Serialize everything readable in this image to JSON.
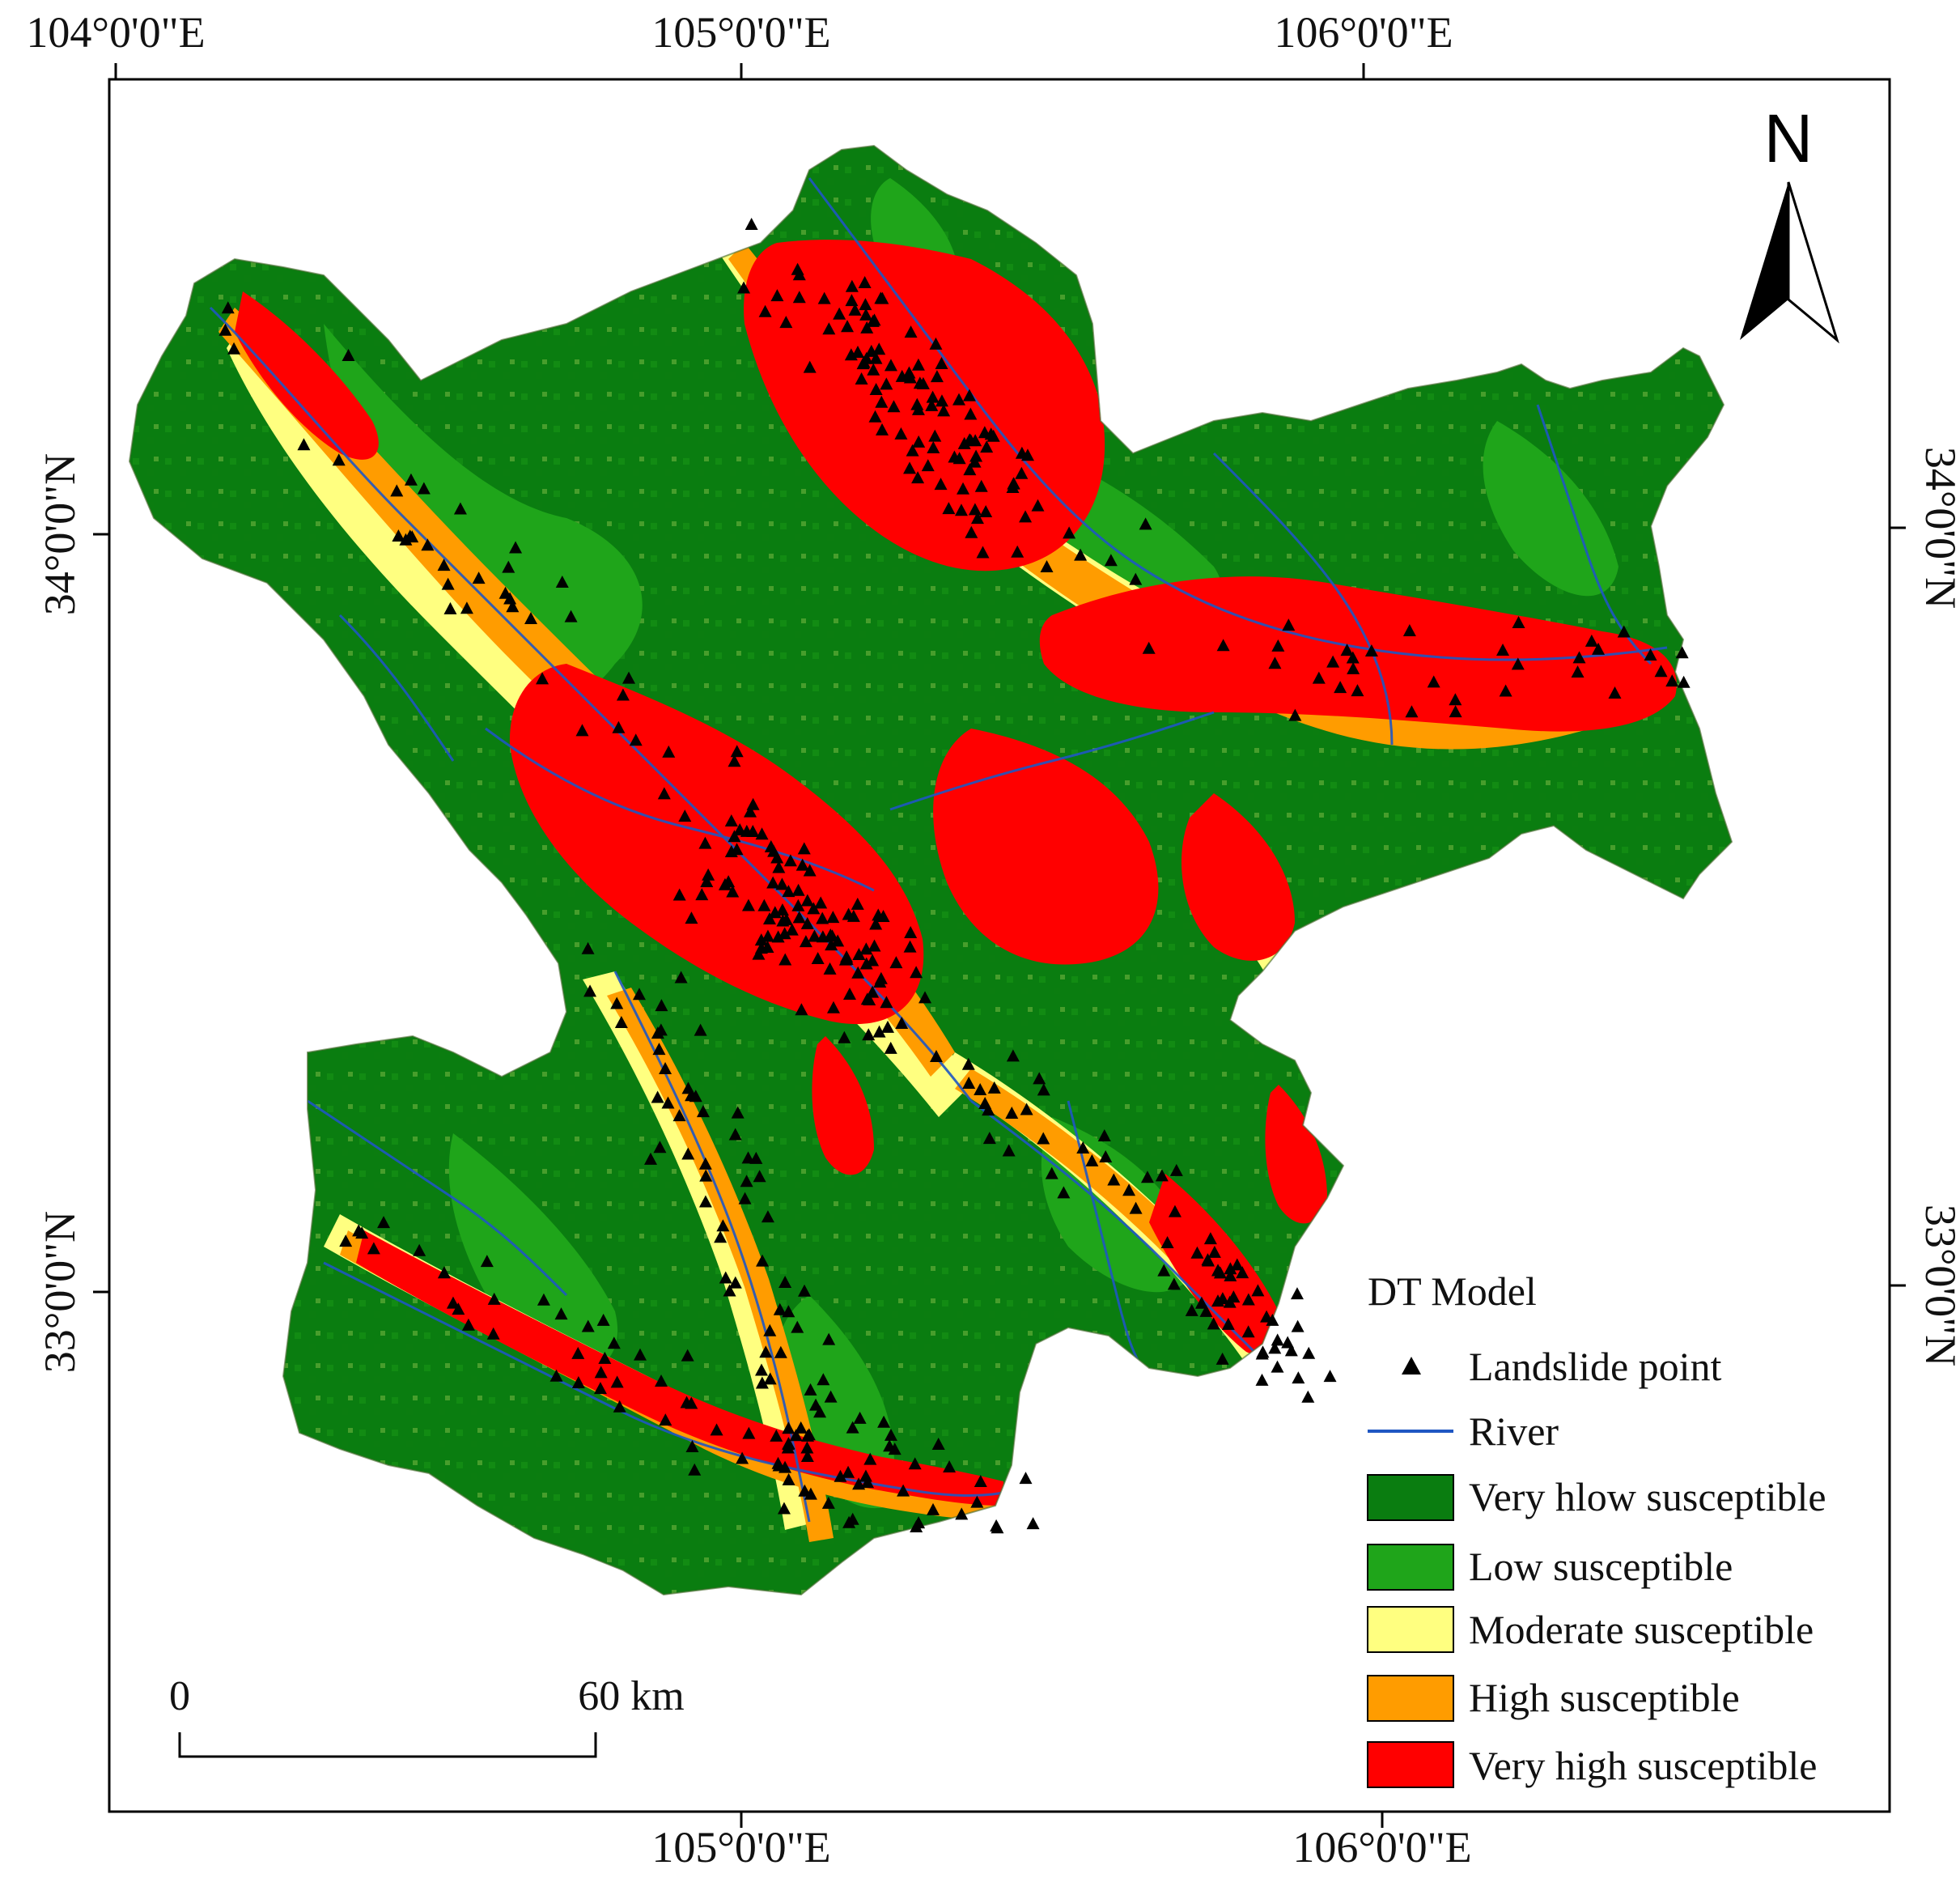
{
  "map": {
    "top_lon_labels": [
      "104°0'0\"E",
      "105°0'0\"E",
      "106°0'0\"E"
    ],
    "bottom_lon_labels": [
      "105°0'0\"E",
      "106°0'0\"E"
    ],
    "left_lat_labels": [
      "34°0'0\"N",
      "33°0'0\"N"
    ],
    "right_lat_labels": [
      "34°0'0\"N",
      "33°0'0\"N"
    ]
  },
  "north_arrow": {
    "label": "N",
    "icon": "north-arrow-icon"
  },
  "scale_bar": {
    "start_label": "0",
    "end_label": "60 km"
  },
  "legend": {
    "title": "DT Model",
    "items": [
      {
        "label": "Landslide point",
        "symbol": "triangle",
        "color": "#000000"
      },
      {
        "label": "River",
        "symbol": "line",
        "color": "#1f57c3"
      },
      {
        "label": "Very hlow susceptible",
        "symbol": "box",
        "color": "#0a7d10"
      },
      {
        "label": "Low susceptible",
        "symbol": "box",
        "color": "#1fa51a"
      },
      {
        "label": "Moderate susceptible",
        "symbol": "box",
        "color": "#ffff80"
      },
      {
        "label": "High susceptible",
        "symbol": "box",
        "color": "#ff9c00"
      },
      {
        "label": "Very high susceptible",
        "symbol": "box",
        "color": "#ff0000"
      }
    ]
  },
  "colors": {
    "very_low": "#0a7d10",
    "low": "#1fa51a",
    "moderate": "#ffff80",
    "high": "#ff9c00",
    "very_high": "#ff0000",
    "river": "#1f57c3",
    "landslide": "#000000"
  }
}
